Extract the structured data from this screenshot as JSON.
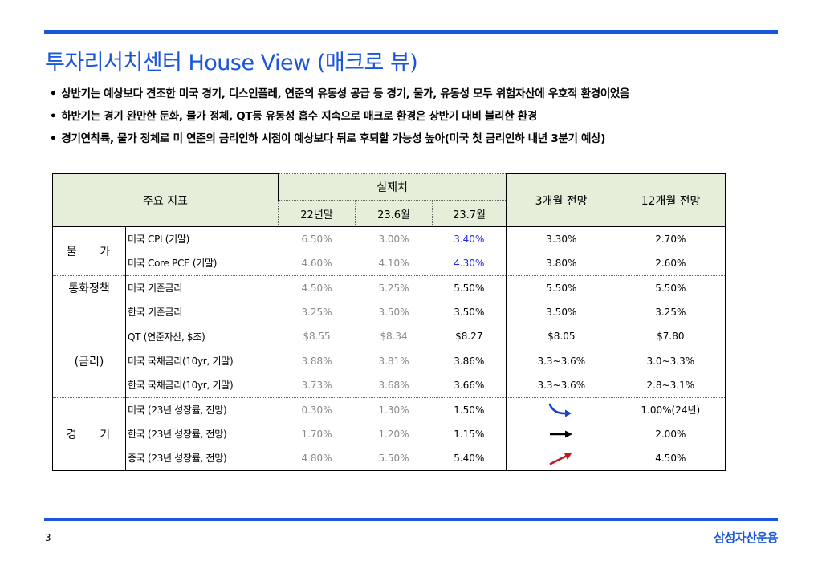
{
  "slide": {
    "title": "투자리서치센터 House View (매크로 뷰)",
    "bullets": [
      "상반기는 예상보다 견조한 미국 경기, 디스인플레, 연준의 유동성 공급 등 경기, 물가, 유동성 모두 위험자산에 우호적 환경이었음",
      "하반기는 경기 완만한 둔화, 물가 정체, QT등 유동성 흡수 지속으로 매크로 환경은 상반기 대비 불리한 환경",
      "경기연착륙, 물가 정체로 미 연준의 금리인하 시점이 예상보다 뒤로 후퇴할 가능성 높아(미국 첫 금리인하 내년 3분기 예상)"
    ],
    "page_number": "3",
    "brand": "삼성자산운용"
  },
  "table": {
    "header": {
      "key_indicator": "주요 지표",
      "actual": "실제치",
      "periods": [
        "22년말",
        "23.6월",
        "23.7월"
      ],
      "forecast_3m": "3개월 전망",
      "forecast_12m": "12개월 전망"
    },
    "groups": {
      "prices": "물  가",
      "monetary": "통화정책",
      "rates": "(금리)",
      "economy": "경  기"
    },
    "rows": [
      {
        "indicator": "미국 CPI (기말)",
        "v1": "6.50%",
        "v2": "3.00%",
        "v3": "3.40%",
        "f3": "3.30%",
        "f12": "2.70%"
      },
      {
        "indicator": "미국 Core PCE (기말)",
        "v1": "4.60%",
        "v2": "4.10%",
        "v3": "4.30%",
        "f3": "3.80%",
        "f12": "2.60%"
      },
      {
        "indicator": "미국 기준금리",
        "v1": "4.50%",
        "v2": "5.25%",
        "v3": "5.50%",
        "f3": "5.50%",
        "f12": "5.50%"
      },
      {
        "indicator": "한국 기준금리",
        "v1": "3.25%",
        "v2": "3.50%",
        "v3": "3.50%",
        "f3": "3.50%",
        "f12": "3.25%"
      },
      {
        "indicator": "QT (연준자산, $조)",
        "v1": "$8.55",
        "v2": "$8.34",
        "v3": "$8.27",
        "f3": "$8.05",
        "f12": "$7.80"
      },
      {
        "indicator": "미국 국채금리(10yr, 기말)",
        "v1": "3.88%",
        "v2": "3.81%",
        "v3": "3.86%",
        "f3": "3.3~3.6%",
        "f12": "3.0~3.3%"
      },
      {
        "indicator": "한국 국채금리(10yr, 기말)",
        "v1": "3.73%",
        "v2": "3.68%",
        "v3": "3.66%",
        "f3": "3.3~3.6%",
        "f12": "2.8~3.1%"
      },
      {
        "indicator": "미국 (23년 성장률, 전망)",
        "v1": "0.30%",
        "v2": "1.30%",
        "v3": "1.50%",
        "f3_icon": "curved-down-right-arrow-icon",
        "f12": "1.00%(24년)"
      },
      {
        "indicator": "한국 (23년 성장률, 전망)",
        "v1": "1.70%",
        "v2": "1.20%",
        "v3": "1.15%",
        "f3_icon": "flat-right-arrow-icon",
        "f12": "2.00%"
      },
      {
        "indicator": "중국 (23년 성장률, 전망)",
        "v1": "4.80%",
        "v2": "5.50%",
        "v3": "5.40%",
        "f3_icon": "up-right-arrow-icon",
        "f12": "4.50%"
      }
    ]
  },
  "colors": {
    "accent": "#1a56db",
    "header_fill": "#e5eed8",
    "highlight_text": "#1e2bd6",
    "down_arrow": "#1a3fd6",
    "up_arrow": "#c0191e"
  }
}
